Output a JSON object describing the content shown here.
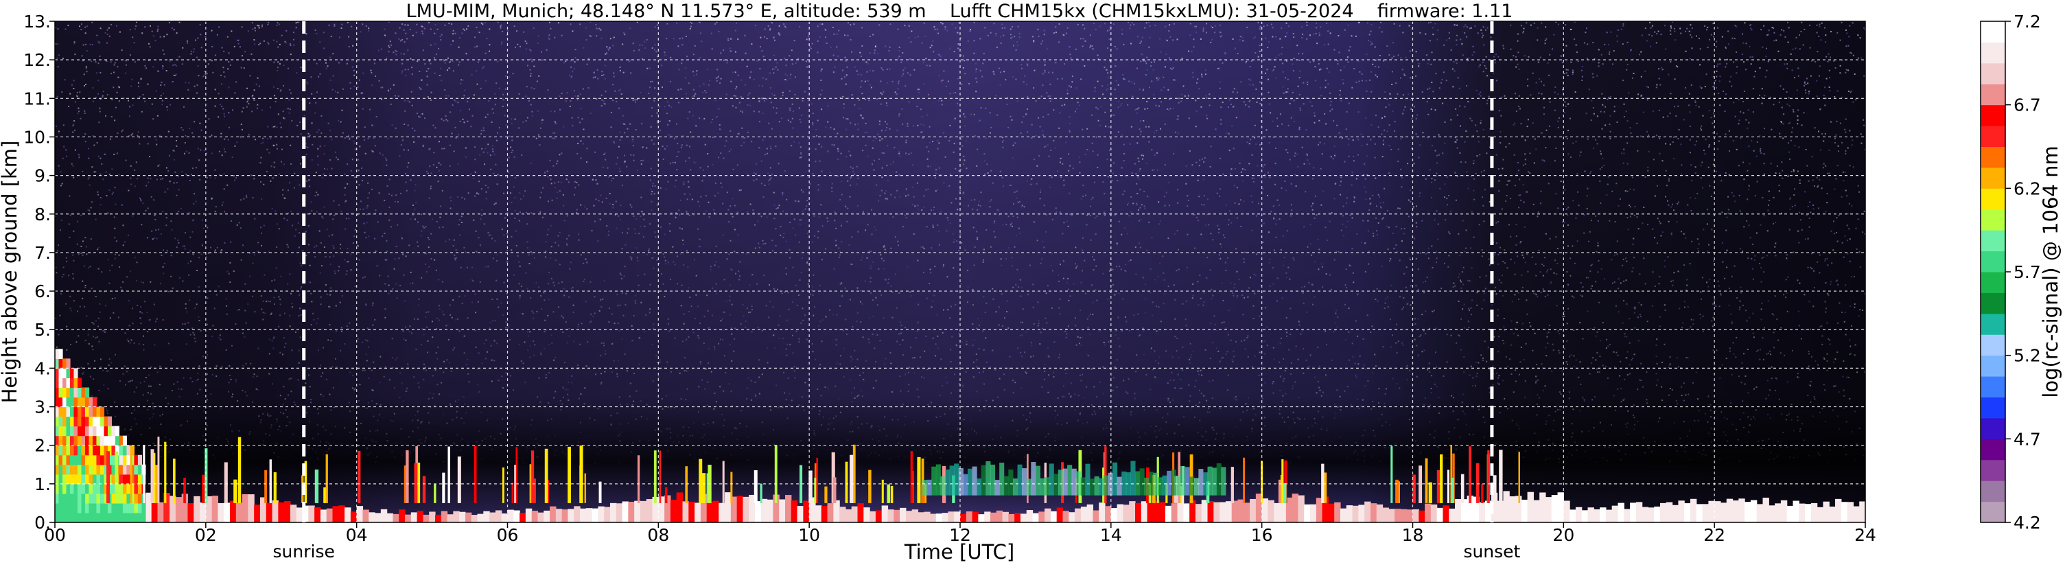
{
  "chart_data": {
    "type": "heatmap",
    "title": "LMU-MIM, Munich; 48.148° N 11.573° E, altitude: 539 m    Lufft CHM15kx (CHM15kxLMU): 31-05-2024    firmware: 1.11",
    "xlabel": "Time [UTC]",
    "ylabel": "Height above ground [km]",
    "colorbar_label": "log(rc-signal) @ 1064 nm",
    "xlim": [
      0,
      24
    ],
    "ylim": [
      0,
      13
    ],
    "x_ticks": [
      "00",
      "02",
      "04",
      "06",
      "08",
      "10",
      "12",
      "14",
      "16",
      "18",
      "20",
      "22",
      "24"
    ],
    "y_ticks": [
      "0.",
      "1.",
      "2.",
      "3.",
      "4.",
      "5.",
      "6.",
      "7.",
      "8.",
      "9.",
      "10.",
      "11.",
      "12.",
      "13."
    ],
    "colorbar_range": [
      4.2,
      7.2
    ],
    "colorbar_ticks": [
      "4.2",
      "4.7",
      "5.2",
      "5.7",
      "6.2",
      "6.7",
      "7.2"
    ],
    "grid": true,
    "markers": [
      {
        "label": "sunrise",
        "x": 3.3
      },
      {
        "label": "sunset",
        "x": 19.05
      }
    ],
    "colormap": [
      "#b8a0b8",
      "#9a7aa4",
      "#8a3c9c",
      "#6a008c",
      "#3a10c8",
      "#1a3cff",
      "#3c7cff",
      "#7ab4ff",
      "#a8ccff",
      "#1ab8a0",
      "#0a8c30",
      "#1ab84c",
      "#3cd884",
      "#6cf0a8",
      "#b8ff40",
      "#ffe800",
      "#ffb000",
      "#ff7000",
      "#ff2020",
      "#ff0000",
      "#ee9090",
      "#f2cccc",
      "#f8eaea",
      "#ffffff"
    ],
    "background_color": "#000000"
  }
}
